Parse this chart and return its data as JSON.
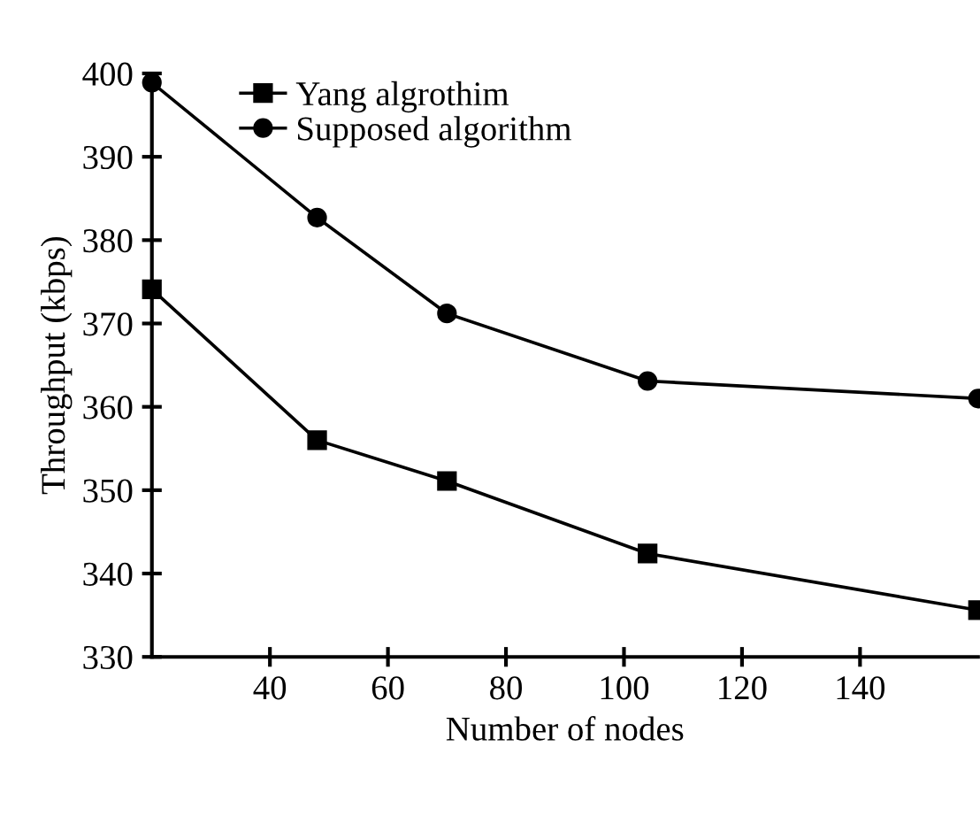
{
  "chart_data": {
    "type": "line",
    "xlabel": "Number of nodes",
    "ylabel": "Throughput (kbps)",
    "x": [
      20,
      48,
      70,
      104,
      160
    ],
    "series": [
      {
        "name": "Yang algrothim",
        "color": "#000000",
        "marker": "square",
        "values": [
          374.1,
          356.0,
          351.1,
          342.4,
          335.6
        ]
      },
      {
        "name": "Supposed algorithm",
        "color": "#000000",
        "marker": "circle",
        "values": [
          398.9,
          382.7,
          371.2,
          363.1,
          361.0
        ]
      }
    ],
    "xlim": [
      20,
      160
    ],
    "xticks": [
      40,
      60,
      80,
      100,
      120,
      140
    ],
    "ylim": [
      330,
      400
    ],
    "yticks": [
      330,
      340,
      350,
      360,
      370,
      380,
      390,
      400
    ],
    "grid": false,
    "legend": "top left",
    "line_style": "solid"
  }
}
